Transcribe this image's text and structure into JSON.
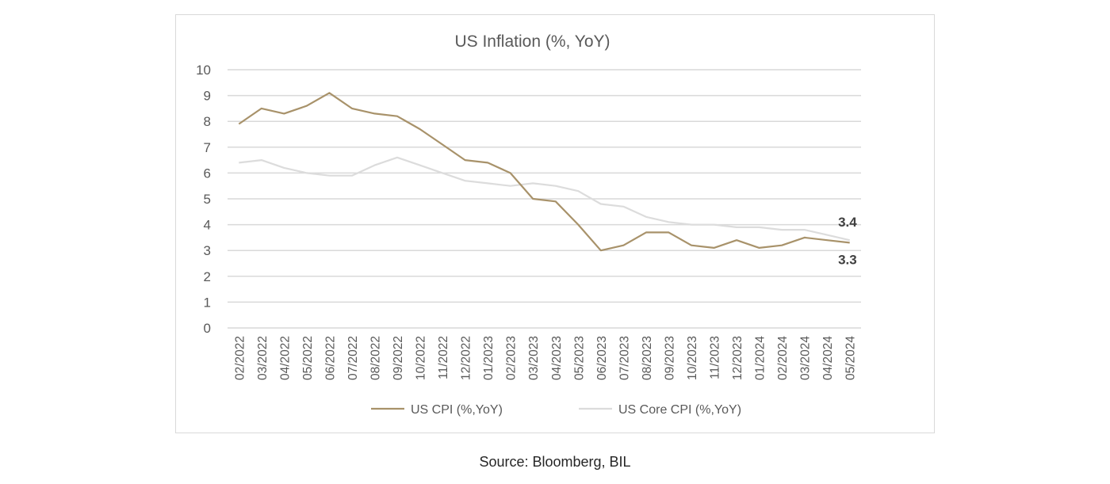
{
  "chart_data": {
    "type": "line",
    "title": "US Inflation (%, YoY)",
    "xlabel": "",
    "ylabel": "",
    "categories": [
      "02/2022",
      "03/2022",
      "04/2022",
      "05/2022",
      "06/2022",
      "07/2022",
      "08/2022",
      "09/2022",
      "10/2022",
      "11/2022",
      "12/2022",
      "01/2023",
      "02/2023",
      "03/2023",
      "04/2023",
      "05/2023",
      "06/2023",
      "07/2023",
      "08/2023",
      "09/2023",
      "10/2023",
      "11/2023",
      "12/2023",
      "01/2024",
      "02/2024",
      "03/2024",
      "04/2024",
      "05/2024"
    ],
    "ylim": [
      0,
      10
    ],
    "yticks": [
      "0",
      "1",
      "2",
      "3",
      "4",
      "5",
      "6",
      "7",
      "8",
      "9",
      "10"
    ],
    "grid": true,
    "legend_position": "bottom",
    "series": [
      {
        "name": "US CPI (%,YoY)",
        "color": "#a8926a",
        "values": [
          7.9,
          8.5,
          8.3,
          8.6,
          9.1,
          8.5,
          8.3,
          8.2,
          7.7,
          7.1,
          6.5,
          6.4,
          6.0,
          5.0,
          4.9,
          4.0,
          3.0,
          3.2,
          3.7,
          3.7,
          3.2,
          3.1,
          3.4,
          3.1,
          3.2,
          3.5,
          3.4,
          3.3
        ]
      },
      {
        "name": "US Core CPI (%,YoY)",
        "color": "#dcdcdc",
        "values": [
          6.4,
          6.5,
          6.2,
          6.0,
          5.9,
          5.9,
          6.3,
          6.6,
          6.3,
          6.0,
          5.7,
          5.6,
          5.5,
          5.6,
          5.5,
          5.3,
          4.8,
          4.7,
          4.3,
          4.1,
          4.0,
          4.0,
          3.9,
          3.9,
          3.8,
          3.8,
          3.6,
          3.4
        ]
      }
    ],
    "annotations": [
      {
        "text": "3.4",
        "series": 1,
        "index": 27,
        "placement": "above"
      },
      {
        "text": "3.3",
        "series": 0,
        "index": 27,
        "placement": "below"
      }
    ]
  },
  "source": "Source: Bloomberg, BIL"
}
